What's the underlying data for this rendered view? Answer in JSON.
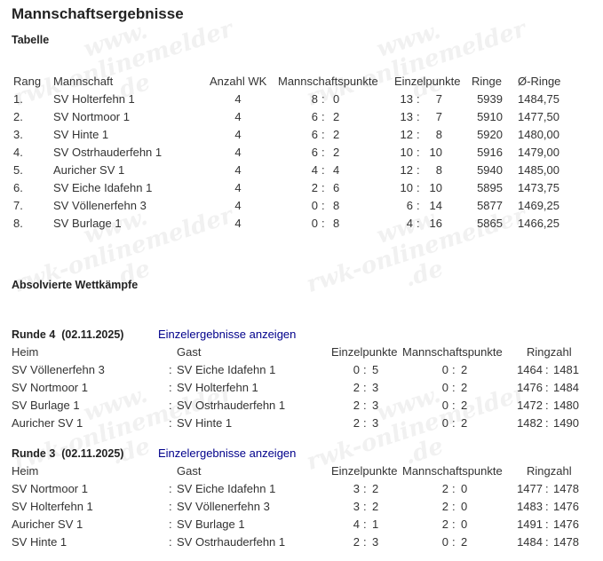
{
  "title": "Mannschaftsergebnisse",
  "table_heading": "Tabelle",
  "watermark": "www.rwk-onlinemelder.de",
  "table": {
    "headers": [
      "Rang",
      "Mannschaft",
      "Anzahl WK",
      "Mannschaftspunkte",
      "Einzelpunkte",
      "Ringe",
      "Ø-Ringe"
    ],
    "rows": [
      {
        "rang": "1.",
        "team": "SV Holterfehn 1",
        "wk": "4",
        "mp": [
          "8",
          "0"
        ],
        "ep": [
          "13",
          "7"
        ],
        "ringe": "5939",
        "avg": "1484,75"
      },
      {
        "rang": "2.",
        "team": "SV Nortmoor 1",
        "wk": "4",
        "mp": [
          "6",
          "2"
        ],
        "ep": [
          "13",
          "7"
        ],
        "ringe": "5910",
        "avg": "1477,50"
      },
      {
        "rang": "3.",
        "team": "SV Hinte 1",
        "wk": "4",
        "mp": [
          "6",
          "2"
        ],
        "ep": [
          "12",
          "8"
        ],
        "ringe": "5920",
        "avg": "1480,00"
      },
      {
        "rang": "4.",
        "team": "SV Ostrhauderfehn 1",
        "wk": "4",
        "mp": [
          "6",
          "2"
        ],
        "ep": [
          "10",
          "10"
        ],
        "ringe": "5916",
        "avg": "1479,00"
      },
      {
        "rang": "5.",
        "team": "Auricher SV 1",
        "wk": "4",
        "mp": [
          "4",
          "4"
        ],
        "ep": [
          "12",
          "8"
        ],
        "ringe": "5940",
        "avg": "1485,00"
      },
      {
        "rang": "6.",
        "team": "SV Eiche Idafehn 1",
        "wk": "4",
        "mp": [
          "2",
          "6"
        ],
        "ep": [
          "10",
          "10"
        ],
        "ringe": "5895",
        "avg": "1473,75"
      },
      {
        "rang": "7.",
        "team": "SV Völlenerfehn 3",
        "wk": "4",
        "mp": [
          "0",
          "8"
        ],
        "ep": [
          "6",
          "14"
        ],
        "ringe": "5877",
        "avg": "1469,25"
      },
      {
        "rang": "8.",
        "team": "SV Burlage 1",
        "wk": "4",
        "mp": [
          "0",
          "8"
        ],
        "ep": [
          "4",
          "16"
        ],
        "ringe": "5865",
        "avg": "1466,25"
      }
    ]
  },
  "completed_heading": "Absolvierte Wettkämpfe",
  "rounds": [
    {
      "title": "Runde 4  (02.11.2025)",
      "link": "Einzelergebnisse anzeigen",
      "headers": [
        "Heim",
        "Gast",
        "Einzelpunkte",
        "Mannschaftspunkte",
        "Ringzahl"
      ],
      "matches": [
        {
          "home": "SV Völlenerfehn 3",
          "guest": "SV Eiche Idafehn 1",
          "ep": [
            "0",
            "5"
          ],
          "mp": [
            "0",
            "2"
          ],
          "rz": [
            "1464",
            "1481"
          ]
        },
        {
          "home": "SV Nortmoor 1",
          "guest": "SV Holterfehn 1",
          "ep": [
            "2",
            "3"
          ],
          "mp": [
            "0",
            "2"
          ],
          "rz": [
            "1476",
            "1484"
          ]
        },
        {
          "home": "SV Burlage 1",
          "guest": "SV Ostrhauderfehn 1",
          "ep": [
            "2",
            "3"
          ],
          "mp": [
            "0",
            "2"
          ],
          "rz": [
            "1472",
            "1480"
          ]
        },
        {
          "home": "Auricher SV 1",
          "guest": "SV Hinte 1",
          "ep": [
            "2",
            "3"
          ],
          "mp": [
            "0",
            "2"
          ],
          "rz": [
            "1482",
            "1490"
          ]
        }
      ]
    },
    {
      "title": "Runde 3  (02.11.2025)",
      "link": "Einzelergebnisse anzeigen",
      "headers": [
        "Heim",
        "Gast",
        "Einzelpunkte",
        "Mannschaftspunkte",
        "Ringzahl"
      ],
      "matches": [
        {
          "home": "SV Nortmoor 1",
          "guest": "SV Eiche Idafehn 1",
          "ep": [
            "3",
            "2"
          ],
          "mp": [
            "2",
            "0"
          ],
          "rz": [
            "1477",
            "1478"
          ]
        },
        {
          "home": "SV Holterfehn 1",
          "guest": "SV Völlenerfehn 3",
          "ep": [
            "3",
            "2"
          ],
          "mp": [
            "2",
            "0"
          ],
          "rz": [
            "1483",
            "1476"
          ]
        },
        {
          "home": "Auricher SV 1",
          "guest": "SV Burlage 1",
          "ep": [
            "4",
            "1"
          ],
          "mp": [
            "2",
            "0"
          ],
          "rz": [
            "1491",
            "1476"
          ]
        },
        {
          "home": "SV Hinte 1",
          "guest": "SV Ostrhauderfehn 1",
          "ep": [
            "2",
            "3"
          ],
          "mp": [
            "0",
            "2"
          ],
          "rz": [
            "1484",
            "1478"
          ]
        }
      ]
    }
  ]
}
